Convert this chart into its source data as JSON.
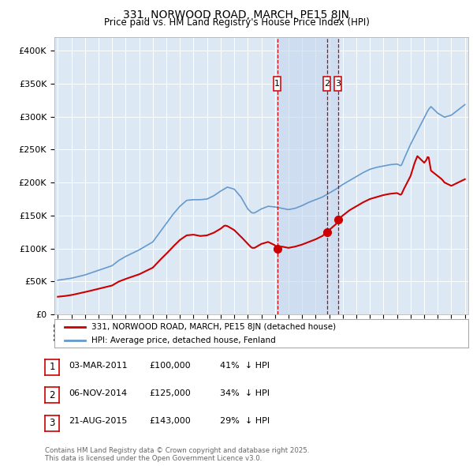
{
  "title": "331, NORWOOD ROAD, MARCH, PE15 8JN",
  "subtitle": "Price paid vs. HM Land Registry's House Price Index (HPI)",
  "bg_color": "#dce9f5",
  "red_line_color": "#cc0000",
  "blue_line_color": "#6699cc",
  "vline_color": "#cc0000",
  "highlight_color": "#c8d8ee",
  "ylim": [
    0,
    420000
  ],
  "yticks": [
    0,
    50000,
    100000,
    150000,
    200000,
    250000,
    300000,
    350000,
    400000
  ],
  "ytick_labels": [
    "£0",
    "£50K",
    "£100K",
    "£150K",
    "£200K",
    "£250K",
    "£300K",
    "£350K",
    "£400K"
  ],
  "transactions": [
    {
      "num": 1,
      "date_float": 2011.167,
      "date_label": "03-MAR-2011",
      "price": 100000,
      "pct": "41%"
    },
    {
      "num": 2,
      "date_float": 2014.836,
      "date_label": "06-NOV-2014",
      "price": 125000,
      "pct": "34%"
    },
    {
      "num": 3,
      "date_float": 2015.636,
      "date_label": "21-AUG-2015",
      "price": 143000,
      "pct": "29%"
    }
  ],
  "legend_red": "331, NORWOOD ROAD, MARCH, PE15 8JN (detached house)",
  "legend_blue": "HPI: Average price, detached house, Fenland",
  "footnote": "Contains HM Land Registry data © Crown copyright and database right 2025.\nThis data is licensed under the Open Government Licence v3.0."
}
